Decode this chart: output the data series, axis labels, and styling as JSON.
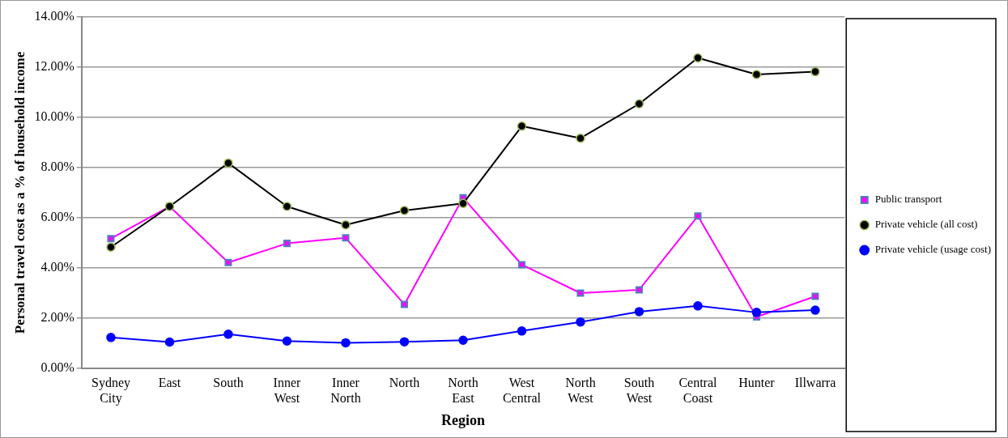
{
  "chart_data": {
    "type": "line",
    "xlabel": "Region",
    "ylabel": "Personal travel cost as a % of household income",
    "categories": [
      "Sydney City",
      "East",
      "South",
      "Inner West",
      "Inner North",
      "North",
      "North East",
      "West Central",
      "North West",
      "South West",
      "Central Coast",
      "Hunter",
      "Illwarra"
    ],
    "series": [
      {
        "name": "Public transport",
        "color": "#ff00ff",
        "marker": "square",
        "values": [
          5.17,
          6.45,
          4.22,
          4.98,
          5.2,
          2.55,
          6.8,
          4.13,
          3.0,
          3.13,
          6.07,
          2.05,
          2.87
        ]
      },
      {
        "name": "Private vehicle (all cost)",
        "color": "#000000",
        "marker": "circle",
        "values": [
          4.83,
          6.45,
          8.18,
          6.45,
          5.72,
          6.29,
          6.57,
          9.65,
          9.17,
          10.54,
          12.37,
          11.71,
          11.82
        ]
      },
      {
        "name": "Private vehicle (usage cost)",
        "color": "#0000ff",
        "marker": "circle",
        "values": [
          1.23,
          1.05,
          1.36,
          1.09,
          1.02,
          1.06,
          1.12,
          1.49,
          1.85,
          2.26,
          2.49,
          2.23,
          2.32
        ]
      }
    ],
    "ylim": [
      0,
      14
    ],
    "yticks": [
      {
        "value": 0,
        "label": "0.00%"
      },
      {
        "value": 2,
        "label": "2.00%"
      },
      {
        "value": 4,
        "label": "4.00%"
      },
      {
        "value": 6,
        "label": "6.00%"
      },
      {
        "value": 8,
        "label": "8.00%"
      },
      {
        "value": 10,
        "label": "10.00%"
      },
      {
        "value": 12,
        "label": "12.00%"
      },
      {
        "value": 14,
        "label": "14.00%"
      }
    ],
    "grid": "y",
    "legend": "right",
    "line_style": "solid"
  }
}
